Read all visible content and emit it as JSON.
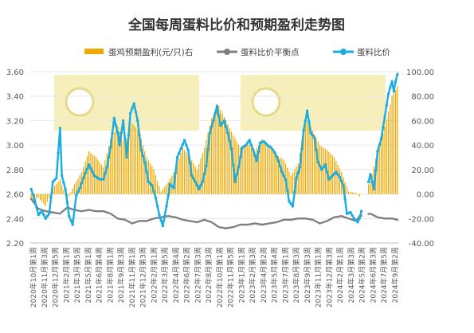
{
  "chart_data": {
    "type": "bar+line",
    "title": "全国每周蛋料比价和预期盈利走势图",
    "legend": {
      "placement": "top",
      "items": [
        {
          "label": "蛋鸡预期盈利(元/只)右",
          "type": "bar",
          "color": "#F0A800"
        },
        {
          "label": "蛋料比价平衡点",
          "type": "line",
          "color": "#7F7F7F"
        },
        {
          "label": "蛋料比价",
          "type": "line",
          "color": "#1AADE0"
        }
      ]
    },
    "y_left": {
      "min": 2.2,
      "max": 3.6,
      "ticks": [
        "2.20",
        "2.40",
        "2.60",
        "2.80",
        "3.00",
        "3.20",
        "3.40",
        "3.60"
      ]
    },
    "y_right": {
      "min": -40,
      "max": 100,
      "ticks": [
        "-40.00",
        "-20.00",
        "0.00",
        "20.00",
        "40.00",
        "60.00",
        "80.00",
        "100.00"
      ]
    },
    "x_labels": [
      "2020年10月第1周",
      "2020年11月第3周",
      "2020年12月第5周",
      "2021年2月第1周",
      "2021年3月第5周",
      "2021年5月第1周",
      "2021年6月第4周",
      "2021年8月第1周",
      "2021年9月第3周",
      "2021年11月第1周",
      "2021年12月第3周",
      "2022年2月第1周",
      "2022年3月第5周",
      "2022年4月第4周",
      "2022年6月第2周",
      "2022年7月第3周",
      "2022年8月第3周",
      "2022年10月第1周",
      "2022年11月第5周",
      "2023年1月第1周",
      "2023年2月第3周",
      "2023年4月第2周",
      "2023年5月第4周",
      "2023年7月第1周",
      "2023年8月第3周",
      "2023年9月第3周",
      "2023年11月第1周",
      "2023年12月第3周",
      "2024年2月第1周",
      "2024年3月第3周",
      "2024年5月第2周",
      "2024年6月第3周",
      "2024年7月第5周",
      "2024年9月第2周"
    ],
    "n_weeks": 204,
    "gap_weeks": {
      "start": 183,
      "end": 187
    },
    "color_bar": "#F0A800",
    "color_ratio": "#1AADE0",
    "color_balance": "#7F7F7F",
    "watermark_color": "#F3E9A6",
    "ratio_points": [
      [
        0,
        2.64
      ],
      [
        2,
        2.55
      ],
      [
        4,
        2.43
      ],
      [
        6,
        2.46
      ],
      [
        8,
        2.4
      ],
      [
        10,
        2.44
      ],
      [
        12,
        2.7
      ],
      [
        14,
        2.73
      ],
      [
        16,
        3.14
      ],
      [
        17,
        2.75
      ],
      [
        19,
        2.64
      ],
      [
        21,
        2.42
      ],
      [
        23,
        2.35
      ],
      [
        25,
        2.59
      ],
      [
        27,
        2.65
      ],
      [
        30,
        2.77
      ],
      [
        32,
        2.84
      ],
      [
        35,
        2.75
      ],
      [
        38,
        2.72
      ],
      [
        40,
        2.72
      ],
      [
        42,
        2.82
      ],
      [
        44,
        2.98
      ],
      [
        46,
        3.22
      ],
      [
        48,
        3.1
      ],
      [
        49,
        3.0
      ],
      [
        51,
        3.2
      ],
      [
        53,
        2.9
      ],
      [
        55,
        3.26
      ],
      [
        57,
        3.34
      ],
      [
        59,
        3.2
      ],
      [
        61,
        2.96
      ],
      [
        63,
        2.86
      ],
      [
        65,
        2.7
      ],
      [
        67,
        2.67
      ],
      [
        69,
        2.57
      ],
      [
        71,
        2.43
      ],
      [
        73,
        2.34
      ],
      [
        75,
        2.5
      ],
      [
        77,
        2.68
      ],
      [
        79,
        2.65
      ],
      [
        81,
        2.9
      ],
      [
        83,
        2.97
      ],
      [
        85,
        3.04
      ],
      [
        87,
        2.96
      ],
      [
        89,
        2.75
      ],
      [
        91,
        2.7
      ],
      [
        93,
        2.64
      ],
      [
        95,
        2.7
      ],
      [
        97,
        2.83
      ],
      [
        99,
        3.1
      ],
      [
        101,
        3.2
      ],
      [
        103,
        3.32
      ],
      [
        105,
        3.16
      ],
      [
        107,
        3.2
      ],
      [
        109,
        3.1
      ],
      [
        111,
        2.97
      ],
      [
        113,
        2.7
      ],
      [
        115,
        2.82
      ],
      [
        117,
        2.98
      ],
      [
        119,
        3.0
      ],
      [
        121,
        3.04
      ],
      [
        123,
        2.96
      ],
      [
        125,
        2.87
      ],
      [
        127,
        3.02
      ],
      [
        129,
        3.03
      ],
      [
        131,
        3.0
      ],
      [
        133,
        2.98
      ],
      [
        135,
        2.94
      ],
      [
        137,
        2.87
      ],
      [
        139,
        2.78
      ],
      [
        141,
        2.72
      ],
      [
        143,
        2.54
      ],
      [
        145,
        2.5
      ],
      [
        147,
        2.73
      ],
      [
        149,
        2.82
      ],
      [
        151,
        3.12
      ],
      [
        153,
        3.28
      ],
      [
        155,
        3.1
      ],
      [
        157,
        3.06
      ],
      [
        159,
        2.86
      ],
      [
        161,
        2.8
      ],
      [
        163,
        2.84
      ],
      [
        165,
        2.72
      ],
      [
        167,
        2.75
      ],
      [
        169,
        2.78
      ],
      [
        171,
        2.74
      ],
      [
        173,
        2.67
      ],
      [
        175,
        2.44
      ],
      [
        177,
        2.45
      ],
      [
        179,
        2.4
      ],
      [
        181,
        2.37
      ],
      [
        182,
        2.4
      ],
      [
        188,
        2.76
      ],
      [
        190,
        2.64
      ],
      [
        192,
        2.95
      ],
      [
        194,
        3.05
      ],
      [
        196,
        3.23
      ],
      [
        198,
        3.42
      ],
      [
        200,
        3.52
      ],
      [
        201,
        3.44
      ],
      [
        202,
        3.52
      ],
      [
        203,
        3.58
      ]
    ],
    "balance_points": [
      [
        0,
        2.56
      ],
      [
        4,
        2.48
      ],
      [
        8,
        2.46
      ],
      [
        12,
        2.45
      ],
      [
        16,
        2.44
      ],
      [
        20,
        2.49
      ],
      [
        24,
        2.47
      ],
      [
        28,
        2.46
      ],
      [
        32,
        2.47
      ],
      [
        36,
        2.46
      ],
      [
        40,
        2.46
      ],
      [
        44,
        2.44
      ],
      [
        48,
        2.4
      ],
      [
        52,
        2.39
      ],
      [
        56,
        2.36
      ],
      [
        60,
        2.38
      ],
      [
        64,
        2.38
      ],
      [
        68,
        2.4
      ],
      [
        72,
        2.41
      ],
      [
        76,
        2.42
      ],
      [
        80,
        2.41
      ],
      [
        84,
        2.39
      ],
      [
        88,
        2.38
      ],
      [
        92,
        2.37
      ],
      [
        96,
        2.39
      ],
      [
        100,
        2.37
      ],
      [
        104,
        2.33
      ],
      [
        108,
        2.32
      ],
      [
        112,
        2.33
      ],
      [
        116,
        2.35
      ],
      [
        120,
        2.35
      ],
      [
        124,
        2.36
      ],
      [
        128,
        2.35
      ],
      [
        132,
        2.36
      ],
      [
        136,
        2.37
      ],
      [
        140,
        2.39
      ],
      [
        144,
        2.39
      ],
      [
        148,
        2.4
      ],
      [
        152,
        2.4
      ],
      [
        156,
        2.39
      ],
      [
        160,
        2.36
      ],
      [
        164,
        2.38
      ],
      [
        168,
        2.41
      ],
      [
        172,
        2.42
      ],
      [
        176,
        2.4
      ],
      [
        180,
        2.38
      ],
      [
        182,
        2.42
      ],
      [
        188,
        2.44
      ],
      [
        192,
        2.41
      ],
      [
        196,
        2.4
      ],
      [
        200,
        2.4
      ],
      [
        203,
        2.39
      ]
    ],
    "profit_points": [
      [
        0,
        -5
      ],
      [
        4,
        -3
      ],
      [
        8,
        -10
      ],
      [
        12,
        5
      ],
      [
        16,
        12
      ],
      [
        20,
        -5
      ],
      [
        24,
        8
      ],
      [
        28,
        18
      ],
      [
        32,
        35
      ],
      [
        36,
        30
      ],
      [
        40,
        22
      ],
      [
        44,
        45
      ],
      [
        48,
        55
      ],
      [
        52,
        40
      ],
      [
        56,
        58
      ],
      [
        60,
        50
      ],
      [
        64,
        30
      ],
      [
        68,
        20
      ],
      [
        72,
        2
      ],
      [
        76,
        10
      ],
      [
        80,
        20
      ],
      [
        84,
        38
      ],
      [
        88,
        30
      ],
      [
        92,
        20
      ],
      [
        96,
        38
      ],
      [
        100,
        62
      ],
      [
        104,
        72
      ],
      [
        108,
        60
      ],
      [
        112,
        48
      ],
      [
        116,
        38
      ],
      [
        120,
        42
      ],
      [
        124,
        35
      ],
      [
        128,
        45
      ],
      [
        132,
        38
      ],
      [
        136,
        32
      ],
      [
        140,
        28
      ],
      [
        144,
        15
      ],
      [
        148,
        25
      ],
      [
        152,
        60
      ],
      [
        156,
        52
      ],
      [
        160,
        40
      ],
      [
        164,
        36
      ],
      [
        168,
        30
      ],
      [
        172,
        18
      ],
      [
        176,
        2
      ],
      [
        180,
        1
      ],
      [
        182,
        -2
      ],
      [
        188,
        10
      ],
      [
        192,
        35
      ],
      [
        196,
        55
      ],
      [
        200,
        80
      ],
      [
        203,
        88
      ]
    ]
  }
}
